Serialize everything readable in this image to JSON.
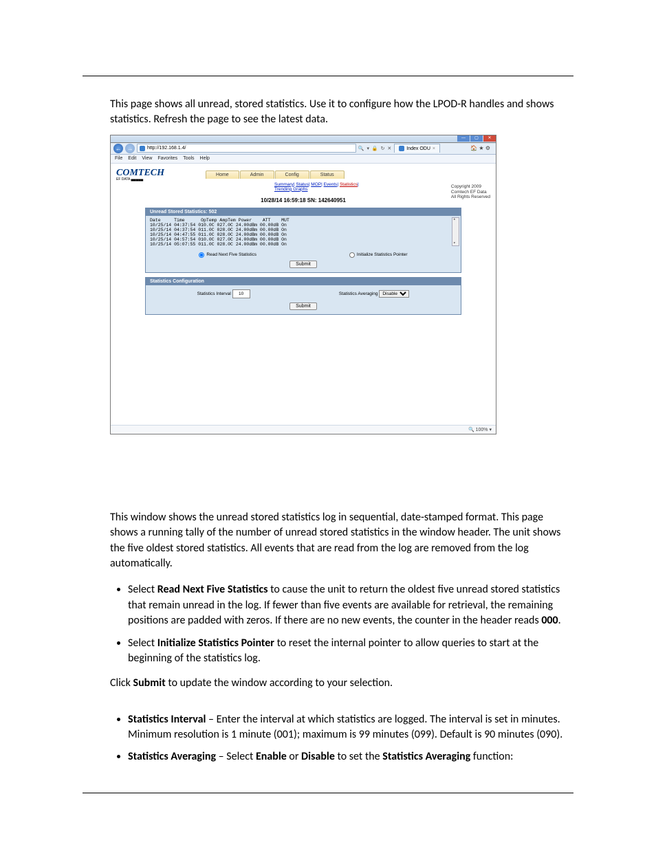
{
  "intro": "This page shows all unread, stored statistics. Use it to configure how the LPOD-R handles and shows statistics. Refresh the page to see the latest data.",
  "browser": {
    "url": "http://192.168.1.4/",
    "search_glyphs": "🔍 ▾ 🔒 ↻ ✕",
    "tab_title": "Index ODU",
    "tab_tools": "🏠 ★ ⚙",
    "menu": [
      "File",
      "Edit",
      "View",
      "Favorites",
      "Tools",
      "Help"
    ],
    "zoom": "🔍 100%  ▾"
  },
  "app": {
    "logo": "COMTECH",
    "logo_sub": "EF DATA ▄▄▄▄▄",
    "copyright": [
      "Copyright 2009",
      "Comtech EF Data",
      "All Rights Reserved"
    ],
    "tabs": [
      "Home",
      "Admin",
      "Config",
      "Status"
    ],
    "subnav": {
      "items": [
        "Summary",
        "Status",
        "MOP",
        "Events",
        "Statistics"
      ],
      "active_index": 4,
      "row2": "Trending Graphs"
    },
    "timestamp": "10/28/14  16:59:18  SN: 142640951",
    "panel1": {
      "title": "Unread Stored Statistics: 502",
      "header": "Date     Time      OpTemp AmpTem Power    ATT    MUT",
      "rows": [
        "10/25/14 04:37:54 010.0C 027.0C 24.00dBm 00.00dB On",
        "10/25/14 04:37:54 011.0C 028.0C 24.00dBm 00.00dB On",
        "10/25/14 04:47:55 011.0C 028.0C 24.00dBm 00.00dB On",
        "10/25/14 04:57:54 010.0C 027.0C 24.00dBm 00.00dB On",
        "10/25/14 05:07:55 011.0C 028.0C 24.00dBm 00.00dB On"
      ],
      "radio1": "Read Next Five Statistics",
      "radio2": "Initialize Statistics Pointer",
      "submit": "Submit"
    },
    "panel2": {
      "title": "Statistics Configuration",
      "interval_label": "Statistics Interval",
      "interval_value": "10",
      "avg_label": "Statistics Averaging",
      "avg_value": "Disable",
      "submit": "Submit"
    }
  },
  "body": {
    "p1": "This window shows the unread stored statistics log in sequential, date-stamped format. This page shows a running tally of the number of unread stored statistics in the window header. The unit shows the five oldest stored statistics. All events that are read from the log are removed from the log automatically.",
    "b1_a": "Select ",
    "b1_b": "Read Next Five Statistics",
    "b1_c": " to cause the unit to return the oldest five unread stored statistics that remain unread in the log. If fewer than five events are available for retrieval, the remaining positions are padded with zeros. If there are no new events, the counter in the header reads ",
    "b1_d": "000",
    "b1_e": ".",
    "b2_a": "Select ",
    "b2_b": "Initialize Statistics Pointer",
    "b2_c": " to reset the internal pointer to allow queries to start at the beginning of the statistics log.",
    "p2_a": "Click ",
    "p2_b": "Submit",
    "p2_c": " to update the window according to your selection.",
    "b3_a": "Statistics Interval",
    "b3_b": " – Enter the interval at which statistics are logged. The interval is set in minutes. Minimum resolution is 1 minute (001); maximum is 99 minutes (099). Default is 90 minutes (090).",
    "b4_a": "Statistics Averaging",
    "b4_b": " – Select ",
    "b4_c": "Enable",
    "b4_d": " or ",
    "b4_e": "Disable",
    "b4_f": " to set the ",
    "b4_g": "Statistics Averaging",
    "b4_h": " function:"
  }
}
